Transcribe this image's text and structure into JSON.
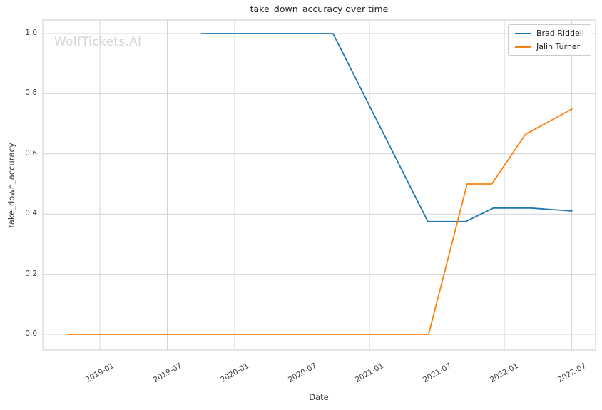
{
  "chart_data": {
    "type": "line",
    "title": "take_down_accuracy over time",
    "xlabel": "Date",
    "ylabel": "take_down_accuracy",
    "watermark": "WolfTickets.AI",
    "grid": true,
    "legend_position": "upper right",
    "background": "#ffffff",
    "grid_color": "#d4d4d4",
    "spine_color": "#cccccc",
    "text_color": "#3b3b3b",
    "title_color": "#262626",
    "watermark_color": "#d5d5d5",
    "x_ticks": [
      "2019-01",
      "2019-07",
      "2020-01",
      "2020-07",
      "2021-01",
      "2021-07",
      "2022-01",
      "2022-07"
    ],
    "y_ticks": [
      {
        "label": "0.0",
        "value": 0.0
      },
      {
        "label": "0.2",
        "value": 0.2
      },
      {
        "label": "0.4",
        "value": 0.4
      },
      {
        "label": "0.6",
        "value": 0.6
      },
      {
        "label": "0.8",
        "value": 0.8
      },
      {
        "label": "1.0",
        "value": 1.0
      }
    ],
    "xlim": [
      "2018-08",
      "2022-09"
    ],
    "ylim": [
      -0.05,
      1.05
    ],
    "series": [
      {
        "name": "Brad Riddell",
        "color": "#1f77b4",
        "points": [
          {
            "date": "2019-10-01",
            "value": 1.0
          },
          {
            "date": "2020-09-24",
            "value": 1.0
          },
          {
            "date": "2021-06-07",
            "value": 0.375
          },
          {
            "date": "2021-09-18",
            "value": 0.375
          },
          {
            "date": "2021-12-02",
            "value": 0.42
          },
          {
            "date": "2022-03-10",
            "value": 0.42
          },
          {
            "date": "2022-07-03",
            "value": 0.41
          }
        ]
      },
      {
        "name": "Jalin Turner",
        "color": "#ff7f0e",
        "points": [
          {
            "date": "2018-10-03",
            "value": 0.0
          },
          {
            "date": "2021-06-09",
            "value": 0.0
          },
          {
            "date": "2021-09-22",
            "value": 0.5
          },
          {
            "date": "2021-11-28",
            "value": 0.5
          },
          {
            "date": "2022-02-28",
            "value": 0.665
          },
          {
            "date": "2022-07-03",
            "value": 0.75
          }
        ]
      }
    ]
  }
}
